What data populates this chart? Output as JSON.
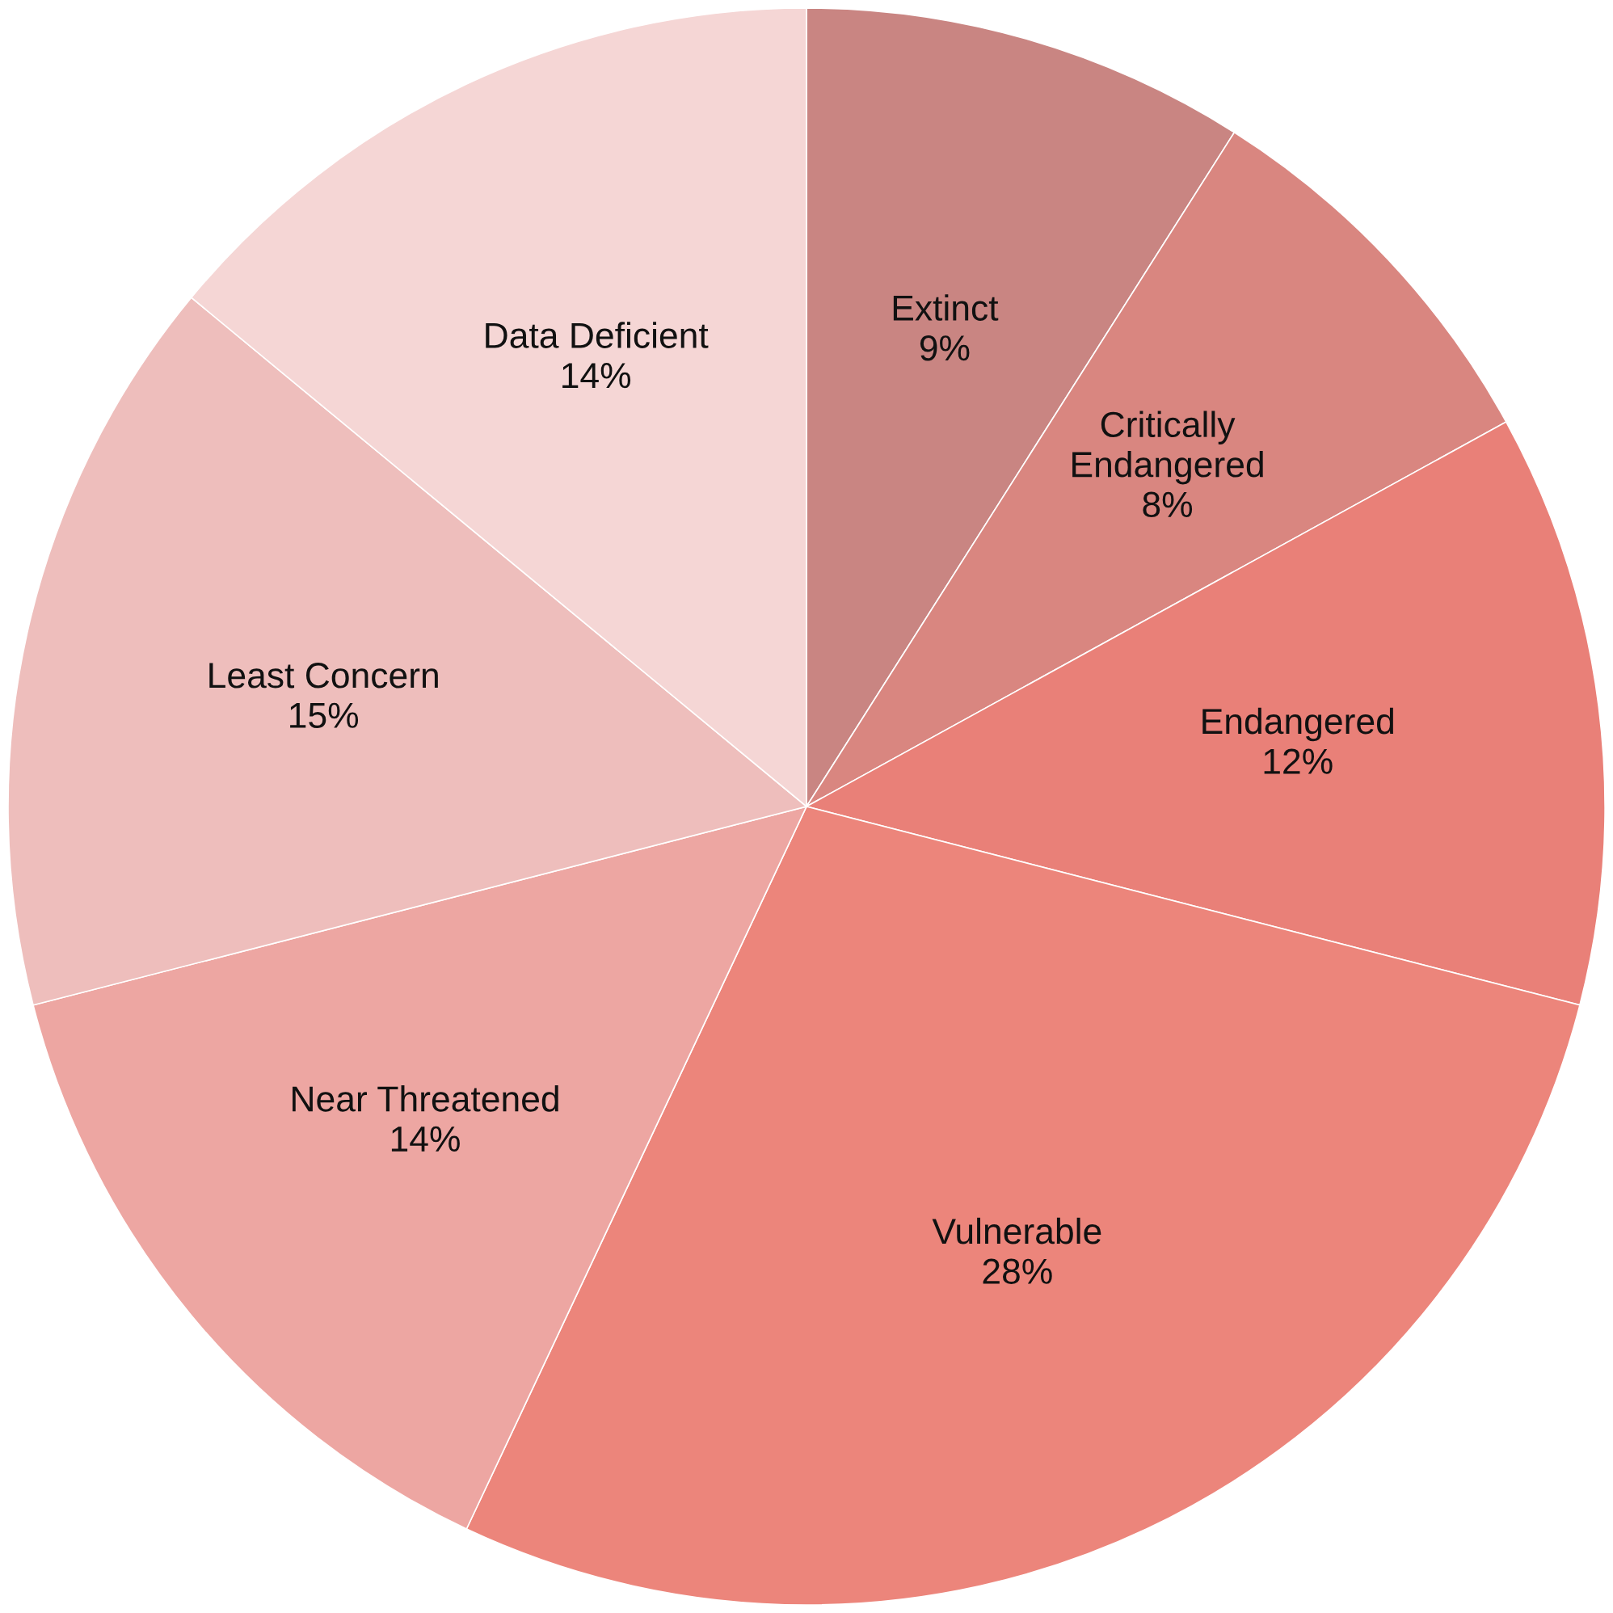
{
  "chart_data": {
    "type": "pie",
    "categories": [
      "Extinct",
      "Critically Endangered",
      "Endangered",
      "Vulnerable",
      "Near Threatened",
      "Least Concern",
      "Data Deficient"
    ],
    "values": [
      9,
      8,
      12,
      28,
      14,
      15,
      14
    ],
    "colors": [
      "#c98582",
      "#d98680",
      "#e98078",
      "#ec857b",
      "#eda6a2",
      "#eebebc",
      "#f5d6d5"
    ],
    "value_labels": [
      "9%",
      "8%",
      "12%",
      "28%",
      "14%",
      "15%",
      "14%"
    ],
    "legend": false
  }
}
